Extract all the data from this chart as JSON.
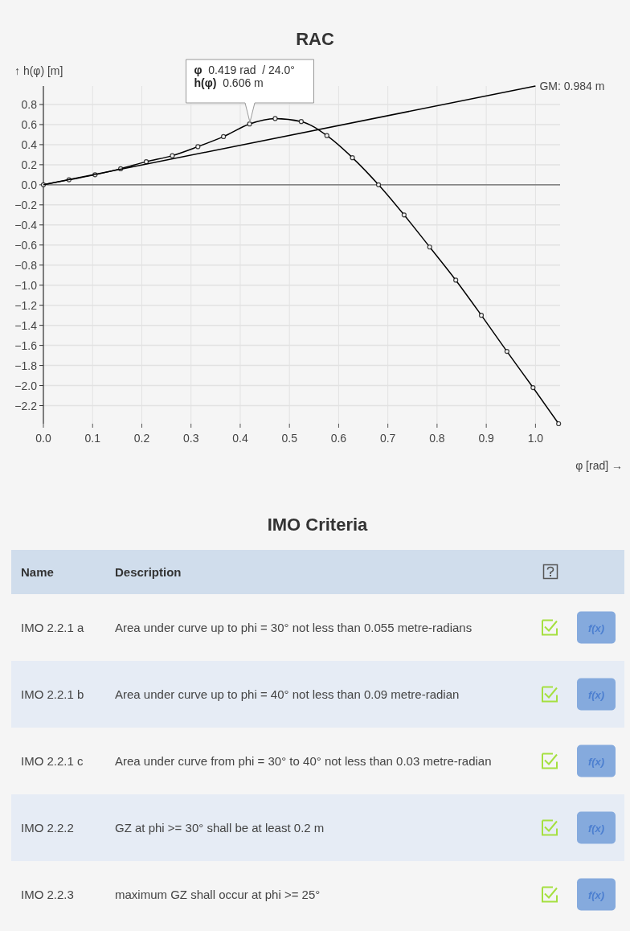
{
  "chart_data": [
    {
      "type": "line",
      "title": "RAC",
      "xlabel": "φ [rad] →",
      "ylabel": "↑ h(φ) [m]",
      "xlim": [
        0,
        1.05
      ],
      "ylim": [
        -2.38,
        0.984
      ],
      "xticks": [
        {
          "value": 0,
          "label": "0.0"
        },
        0.1,
        0.2,
        0.3,
        0.4,
        0.5,
        0.6,
        0.7,
        0.8,
        0.9,
        {
          "value": 1,
          "label": "1.0"
        }
      ],
      "yticks": [
        0.8,
        0.6,
        0.4,
        0.2,
        {
          "value": 0,
          "label": "0.0"
        },
        {
          "value": -0.2,
          "label": "−0.2"
        },
        {
          "value": -0.4,
          "label": "−0.4"
        },
        {
          "value": -0.6,
          "label": "−0.6"
        },
        {
          "value": -0.8,
          "label": "−0.8"
        },
        {
          "value": -1,
          "label": "−1.0"
        },
        {
          "value": -1.2,
          "label": "−1.2"
        },
        {
          "value": -1.4,
          "label": "−1.4"
        },
        {
          "value": -1.6,
          "label": "−1.6"
        },
        {
          "value": -1.8,
          "label": "−1.8"
        },
        {
          "value": -2,
          "label": "−2.0"
        },
        {
          "value": -2.2,
          "label": "−2.2"
        }
      ],
      "grid": true,
      "series": [
        {
          "color": "#000000",
          "marker": "circle",
          "x": [
            0,
            0.052,
            0.105,
            0.157,
            0.209,
            0.262,
            0.314,
            0.366,
            0.419,
            0.471,
            0.524,
            0.576,
            0.628,
            0.681,
            0.733,
            0.785,
            0.838,
            0.89,
            0.942,
            0.995,
            1.047
          ],
          "values": [
            0,
            0.05,
            0.1,
            0.16,
            0.23,
            0.29,
            0.38,
            0.48,
            0.606,
            0.66,
            0.63,
            0.49,
            0.27,
            0,
            -0.3,
            -0.62,
            -0.95,
            -1.3,
            -1.66,
            -2.02,
            -2.38
          ]
        },
        {
          "name": "GM: 0.984 m",
          "color": "#000000",
          "marker": "none",
          "x": [
            0,
            1
          ],
          "values": [
            0,
            0.984
          ]
        }
      ],
      "ref_lines": [
        {
          "axis": "y",
          "value": 0,
          "color": "#666666"
        }
      ],
      "annotations": [
        "φ 0.419 rad  / 24.0°",
        "h(φ) 0.606 m"
      ]
    },
    {
      "type": "other",
      "title": "IMO Criteria",
      "annotations": [
        "Name",
        "Description",
        "IMO 2.2.1 a",
        "Area under curve up to phi = 30° not less than 0.055 metre-radians",
        "f(x)",
        "IMO 2.2.1 b",
        "Area under curve up to phi = 40° not less than 0.09 metre-radian",
        "f(x)",
        "IMO 2.2.1 c",
        "Area under curve from phi = 30° to 40° not less than 0.03 metre-radian",
        "f(x)",
        "IMO 2.2.2",
        "GZ at phi >= 30° shall be at least 0.2 m",
        "f(x)",
        "IMO 2.2.3",
        "maximum GZ shall occur at phi >= 25°",
        "f(x)"
      ]
    }
  ]
}
